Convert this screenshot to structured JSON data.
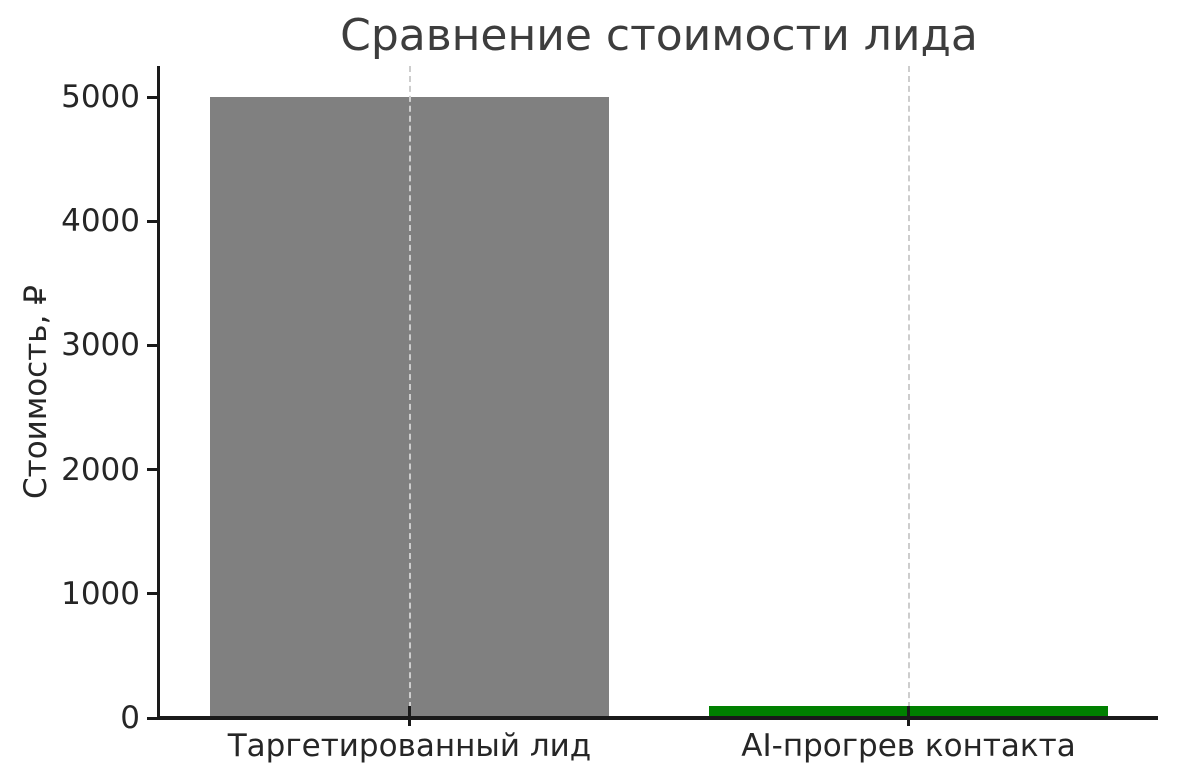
{
  "chart_data": {
    "type": "bar",
    "title": "Сравнение стоимости лида",
    "xlabel": "",
    "ylabel": "Стоимость, ₽",
    "categories": [
      "Таргетированный лид",
      "AI-прогрев контакта"
    ],
    "values": [
      5000,
      100
    ],
    "bar_colors": [
      "#808080",
      "#008000"
    ],
    "yticks": [
      0,
      1000,
      2000,
      3000,
      4000,
      5000
    ],
    "ylim": [
      0,
      5250
    ],
    "bar_width_fraction": 0.8,
    "grid": "vertical dashed lines at each category, drawn over bars",
    "legend": "none",
    "colors": {
      "background": "#ffffff",
      "axis": "#1a1a1a",
      "grid": "#cdcdcd",
      "tick_text": "#262626",
      "title_text": "#3d3d3d"
    }
  }
}
